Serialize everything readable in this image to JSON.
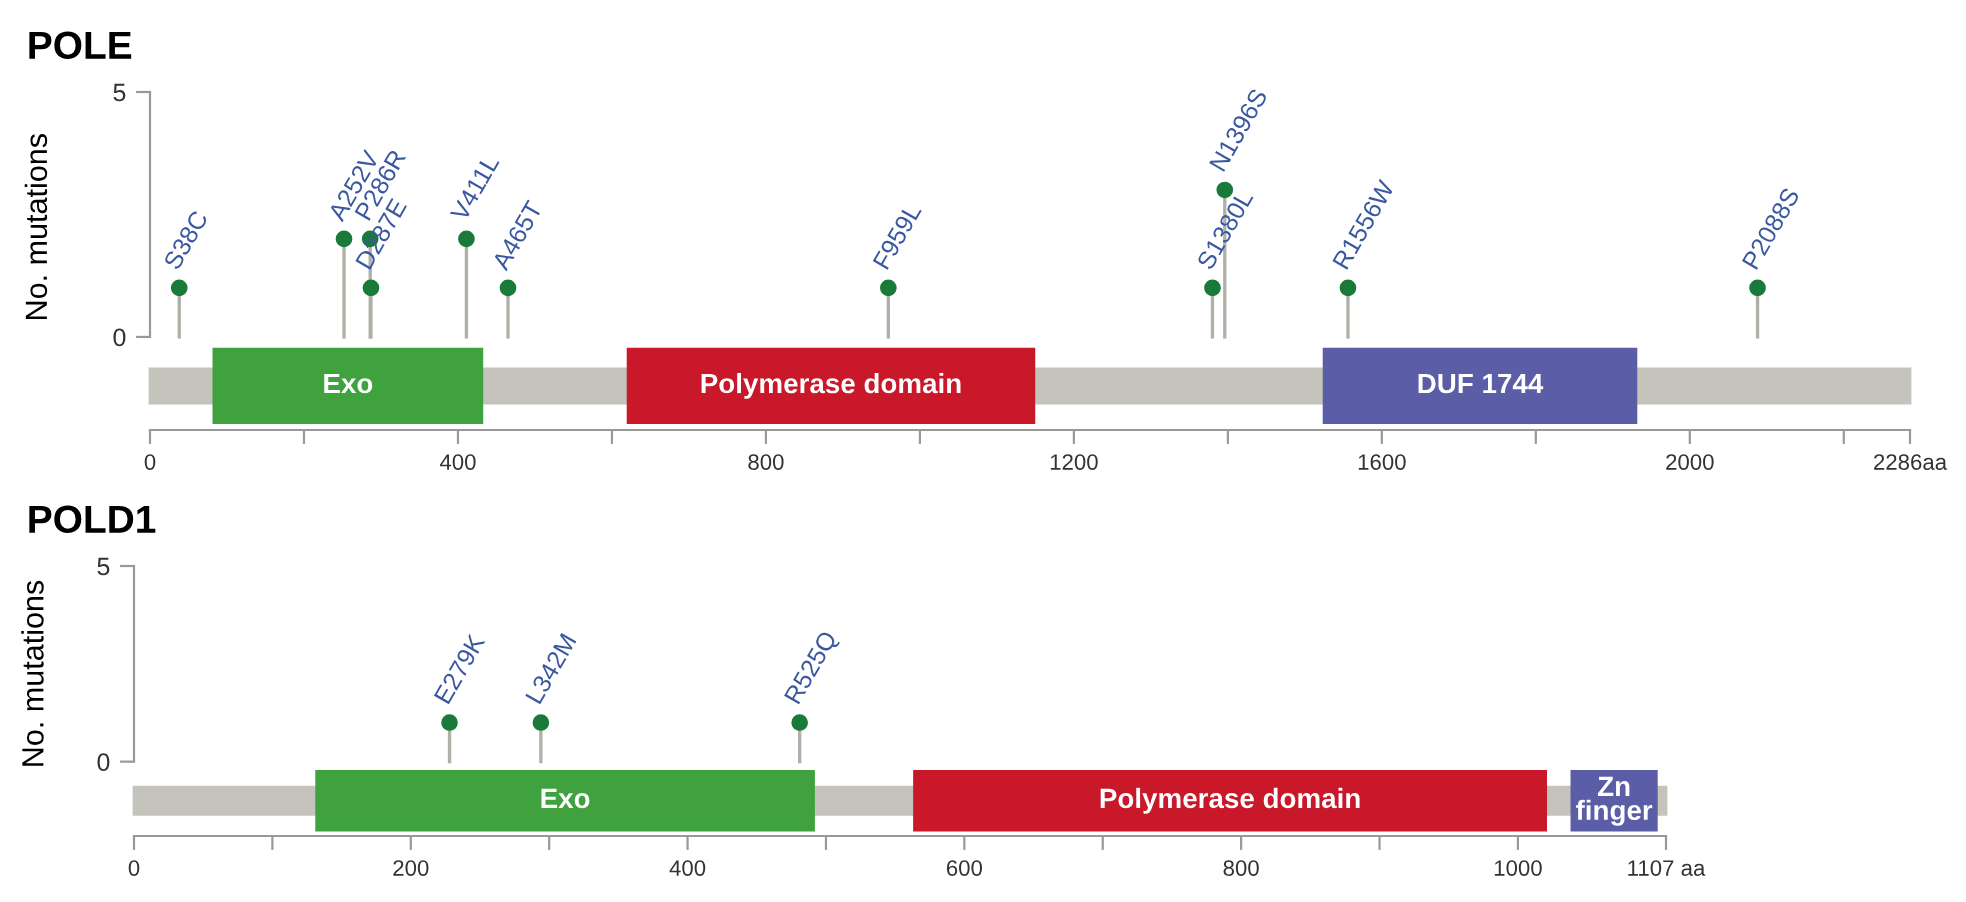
{
  "chart_data": [
    {
      "type": "lollipop",
      "title": "POLE",
      "ylabel": "No. mutations",
      "x": [
        38,
        252,
        286,
        287,
        411,
        465,
        959,
        1380,
        1396,
        1556,
        2088
      ],
      "series": [
        {
          "color": "#1a7a3a",
          "values": [
            1,
            2,
            2,
            1,
            2,
            1,
            1,
            1,
            3,
            1,
            1
          ],
          "value_labels": [
            "S38C",
            "A252V",
            "P286R",
            "D287E",
            "V411L",
            "A465T",
            "F959L",
            "S1380L",
            "N1396S",
            "R1556W",
            "P2088S"
          ]
        }
      ],
      "xlim": [
        0,
        2286
      ],
      "xticks": [
        0,
        {
          "value": 200,
          "label": null
        },
        400,
        {
          "value": 600,
          "label": null
        },
        800,
        {
          "value": 1000,
          "label": null
        },
        1200,
        {
          "value": 1400,
          "label": null
        },
        1600,
        {
          "value": 1800,
          "label": null
        },
        2000,
        {
          "value": 2200,
          "label": null
        },
        {
          "value": 2286,
          "label": "2286aa"
        }
      ],
      "ylim": [
        -1.9,
        5
      ],
      "yticks": [
        0,
        5
      ],
      "grid": false,
      "marker": "circle",
      "bands": [
        {
          "axis": "x",
          "from": 0,
          "to": 2286,
          "label": null,
          "color": "#c4c4bc"
        },
        {
          "axis": "x",
          "from": 83,
          "to": 431,
          "label": "Exo",
          "color": "#3fa23f"
        },
        {
          "axis": "x",
          "from": 621,
          "to": 1148,
          "label": "Polymerase domain",
          "color": "#c8182a"
        },
        {
          "axis": "x",
          "from": 1525,
          "to": 1930,
          "label": "DUF 1744",
          "color": "#5b5ea6"
        }
      ]
    },
    {
      "type": "lollipop",
      "title": "POLD1",
      "ylabel": "No. mutations",
      "x": [
        228,
        294,
        481
      ],
      "series": [
        {
          "color": "#1a7a3a",
          "values": [
            1,
            1,
            1
          ],
          "value_labels": [
            "E279K",
            "L342M",
            "R525Q"
          ]
        }
      ],
      "xlim": [
        0,
        1107
      ],
      "xticks": [
        0,
        {
          "value": 100,
          "label": null
        },
        200,
        {
          "value": 300,
          "label": null
        },
        400,
        {
          "value": 500,
          "label": null
        },
        600,
        {
          "value": 700,
          "label": null
        },
        800,
        {
          "value": 900,
          "label": null
        },
        1000,
        {
          "value": 1107,
          "label": "1107 aa"
        }
      ],
      "ylim": [
        -1.9,
        5
      ],
      "yticks": [
        0,
        5
      ],
      "grid": false,
      "marker": "circle",
      "bands": [
        {
          "axis": "x",
          "from": 0,
          "to": 1107,
          "label": null,
          "color": "#c4c4bc"
        },
        {
          "axis": "x",
          "from": 132,
          "to": 491,
          "label": "Exo",
          "color": "#3fa23f"
        },
        {
          "axis": "x",
          "from": 564,
          "to": 1020,
          "label": "Polymerase domain",
          "color": "#c8182a"
        },
        {
          "axis": "x",
          "from": 1039,
          "to": 1100,
          "label": "Zn\nfinger",
          "color": "#5b5ea6"
        }
      ]
    }
  ]
}
